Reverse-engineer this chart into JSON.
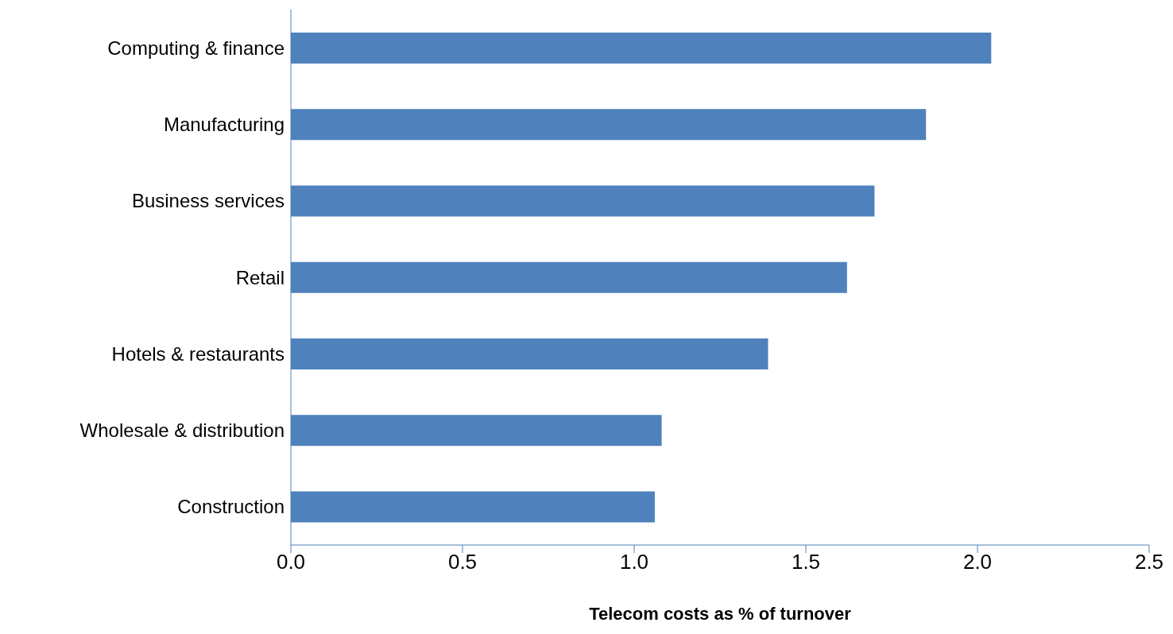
{
  "chart_data": {
    "type": "bar",
    "orientation": "horizontal",
    "xlabel": "Telecom costs as % of turnover",
    "categories": [
      "Computing & finance",
      "Manufacturing",
      "Business services",
      "Retail",
      "Hotels & restaurants",
      "Wholesale & distribution",
      "Construction"
    ],
    "values": [
      2.04,
      1.85,
      1.7,
      1.62,
      1.39,
      1.08,
      1.06
    ],
    "color": "#4f81bd",
    "xlim": [
      0,
      2.5
    ],
    "xticks": [
      {
        "value": 0,
        "label": "0.0"
      },
      {
        "value": 0.5,
        "label": "0.5"
      },
      {
        "value": 1,
        "label": "1.0"
      },
      {
        "value": 1.5,
        "label": "1.5"
      },
      {
        "value": 2,
        "label": "2.0"
      },
      {
        "value": 2.5,
        "label": "2.5"
      }
    ],
    "grid": false,
    "legend": false
  }
}
